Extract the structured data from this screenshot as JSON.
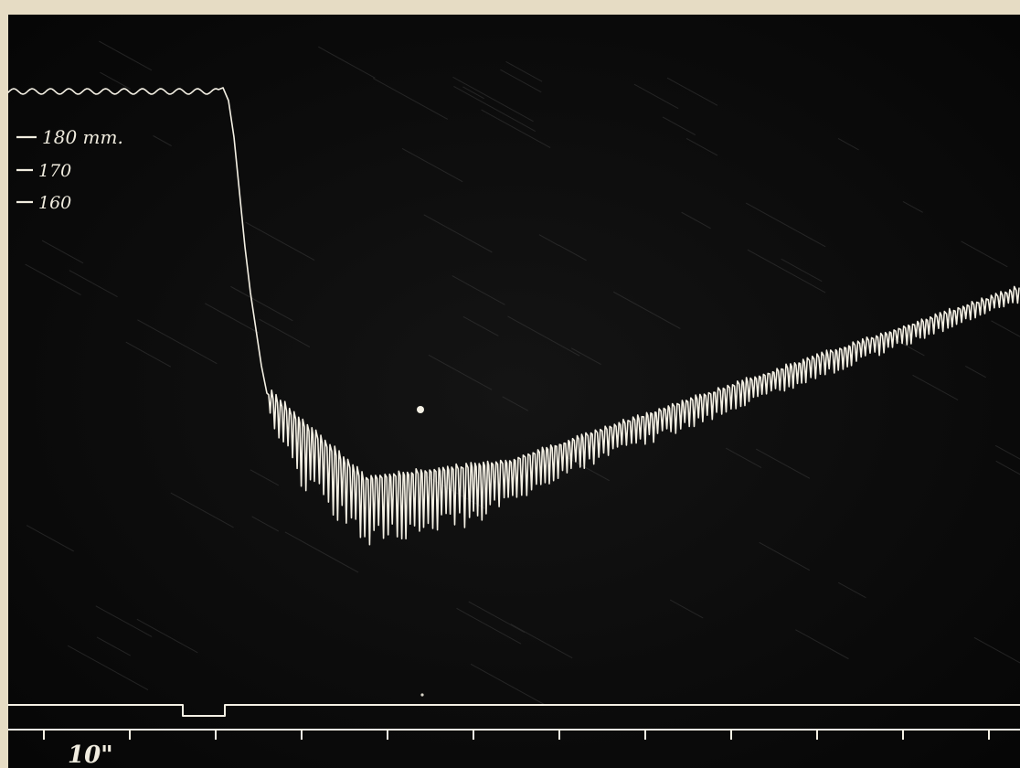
{
  "scale_labels": {
    "l180": "180 mm.",
    "l170": "170",
    "l160": "160"
  },
  "time_label": "10\"",
  "colors": {
    "paper": "#e6dcc4",
    "smoked_background": "#0b0b0b",
    "trace": "#f4f0e4"
  }
}
